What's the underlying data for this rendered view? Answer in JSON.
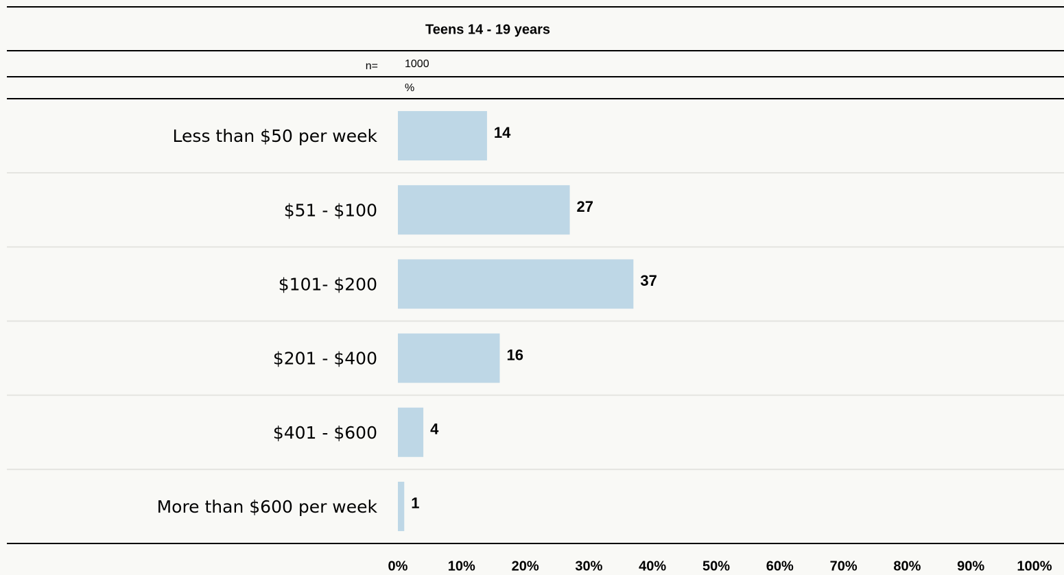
{
  "chart_data": {
    "type": "bar",
    "orientation": "horizontal",
    "title": "Teens 14 - 19 years",
    "n_label": "n=",
    "n": 1000,
    "unit_label": "%",
    "categories": [
      "Less than $50 per week",
      "$51 - $100",
      "$101- $200",
      "$201 - $400",
      "$401 - $600",
      "More than $600 per week"
    ],
    "values": [
      14,
      27,
      37,
      16,
      4,
      1
    ],
    "color": "#bed7e6",
    "xlim": [
      0,
      100
    ],
    "xticks": [
      {
        "value": 0,
        "label": "0%"
      },
      {
        "value": 10,
        "label": "10%"
      },
      {
        "value": 20,
        "label": "20%"
      },
      {
        "value": 30,
        "label": "30%"
      },
      {
        "value": 40,
        "label": "40%"
      },
      {
        "value": 50,
        "label": "50%"
      },
      {
        "value": 60,
        "label": "60%"
      },
      {
        "value": 70,
        "label": "70%"
      },
      {
        "value": 80,
        "label": "80%"
      },
      {
        "value": 90,
        "label": "90%"
      },
      {
        "value": 100,
        "label": "100%"
      }
    ]
  }
}
